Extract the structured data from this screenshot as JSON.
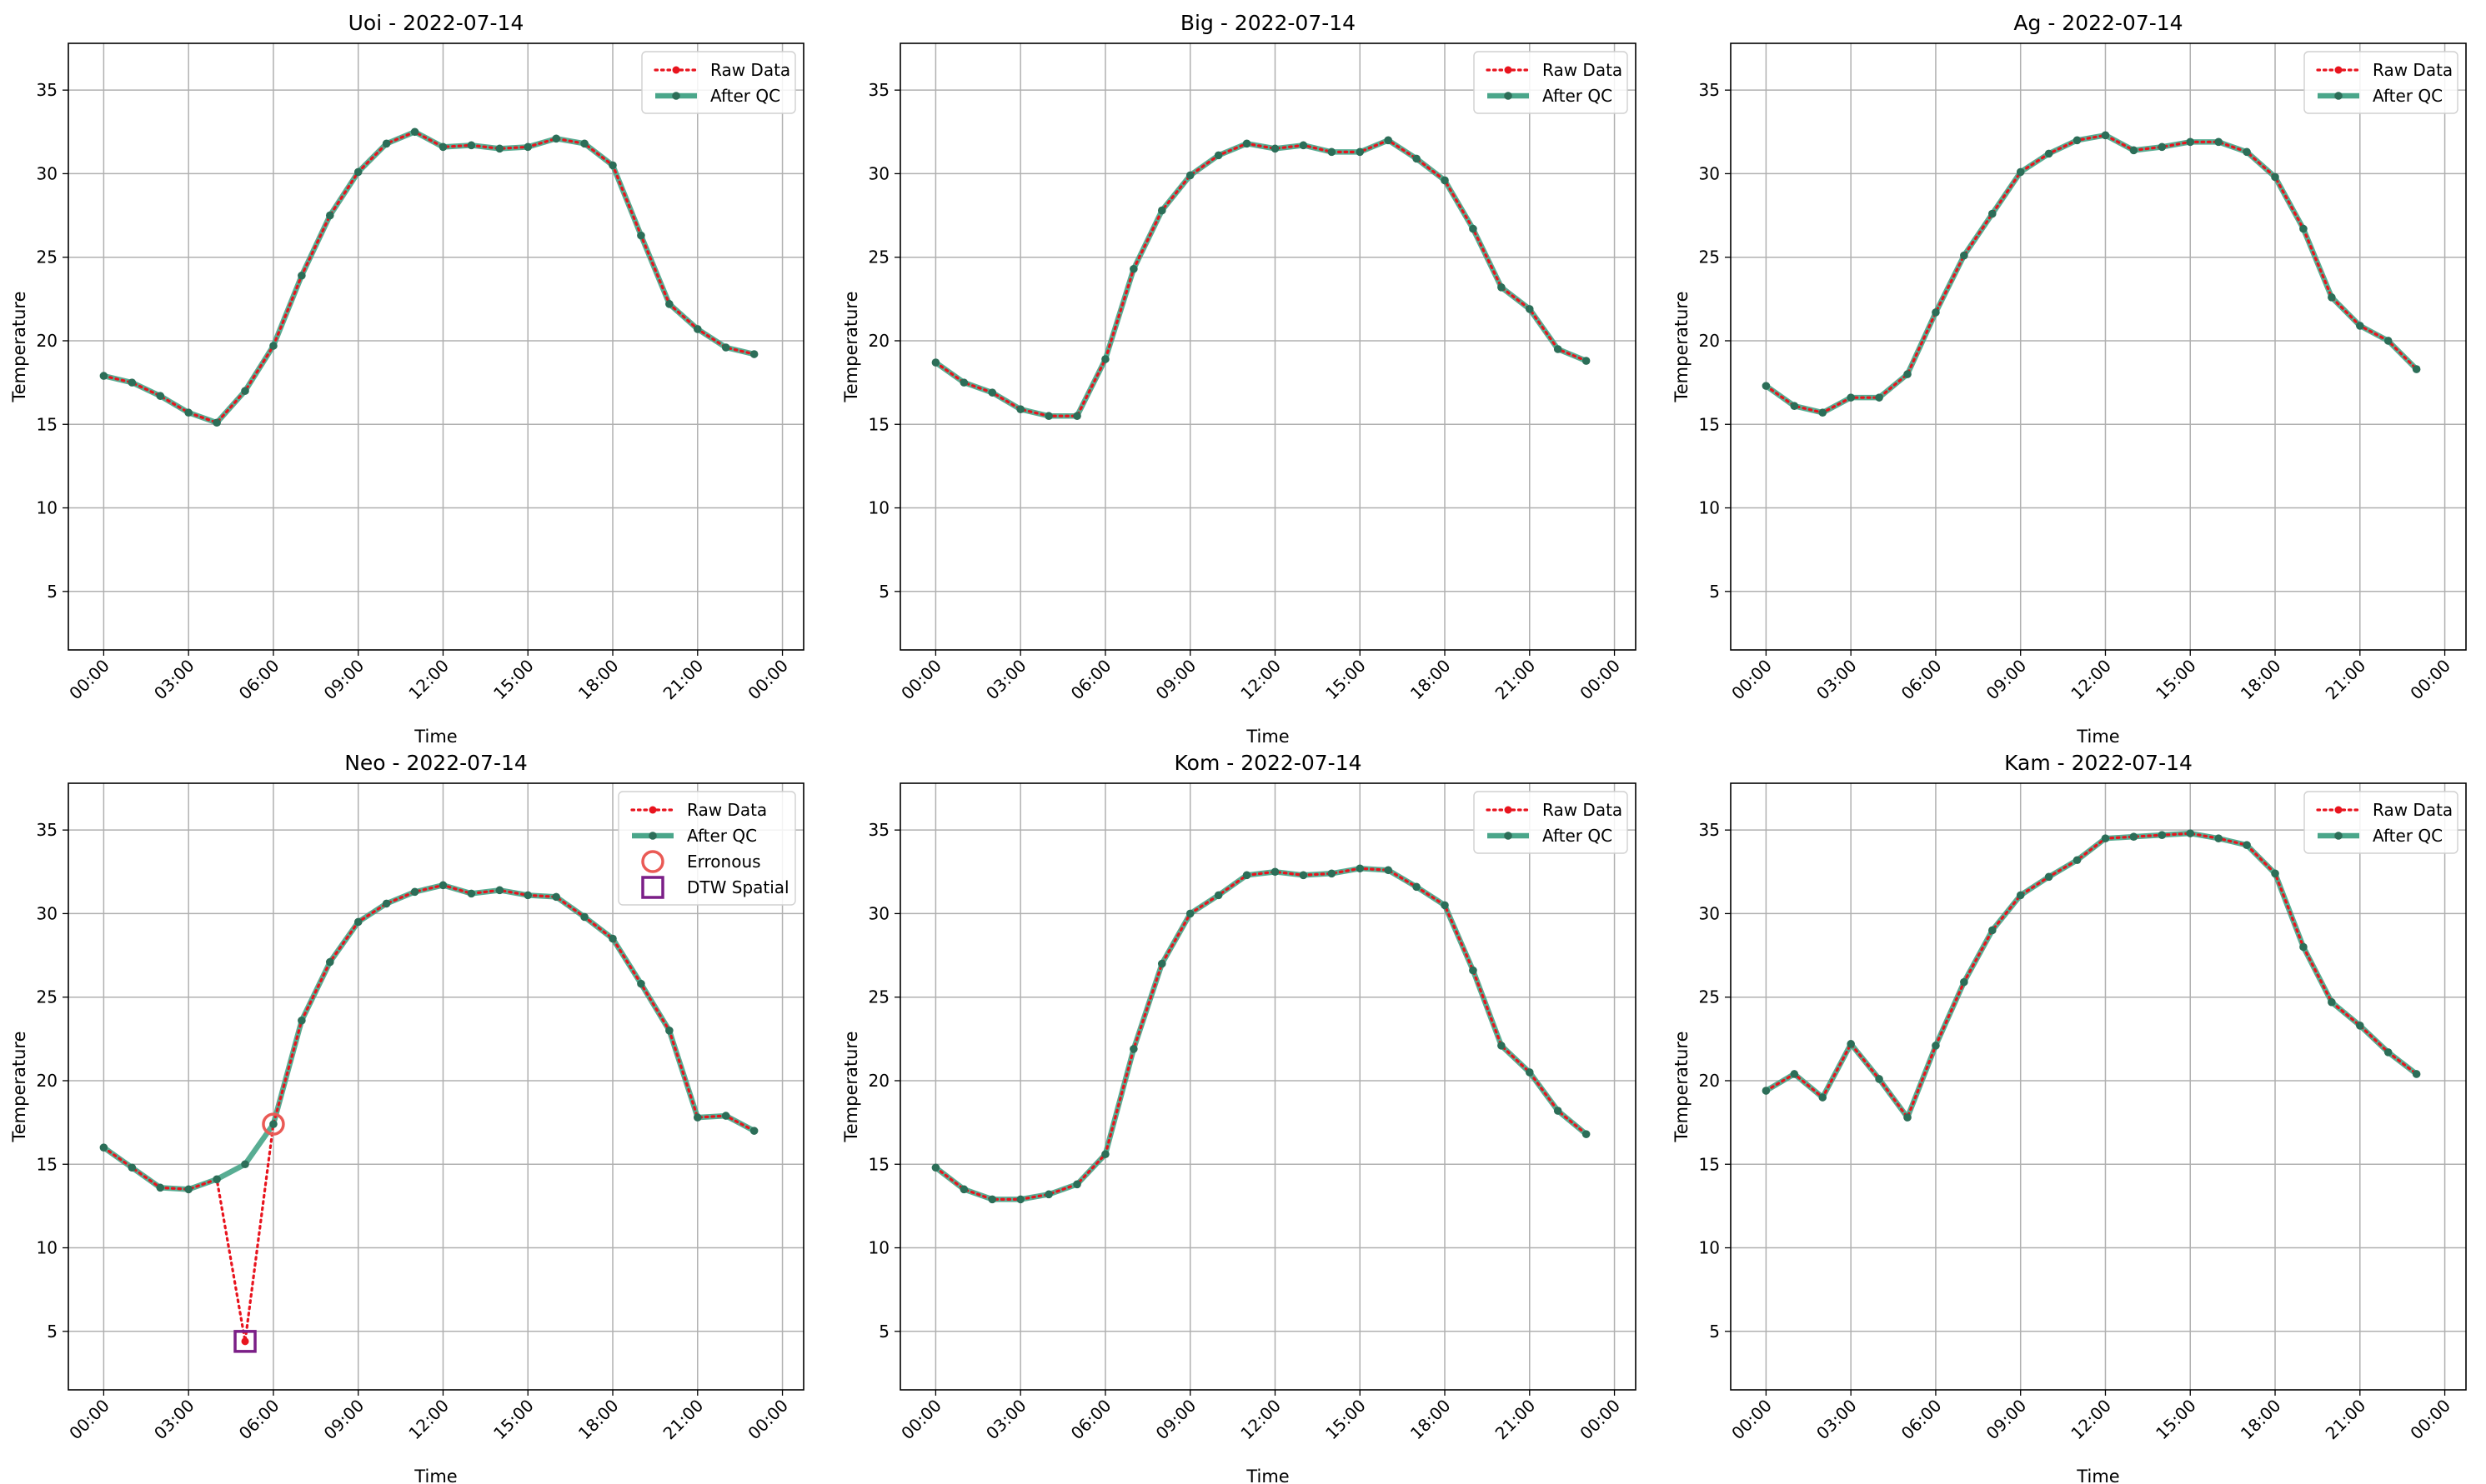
{
  "chart_data": [
    {
      "type": "line",
      "title": "Uoi - 2022-07-14",
      "xlabel": "Time",
      "ylabel": "Temperature",
      "x": [
        "00:00",
        "01:00",
        "02:00",
        "03:00",
        "04:00",
        "05:00",
        "06:00",
        "07:00",
        "08:00",
        "09:00",
        "10:00",
        "11:00",
        "12:00",
        "13:00",
        "14:00",
        "15:00",
        "16:00",
        "17:00",
        "18:00",
        "19:00",
        "20:00",
        "21:00",
        "22:00",
        "23:00"
      ],
      "xticks": [
        "00:00",
        "03:00",
        "06:00",
        "09:00",
        "12:00",
        "15:00",
        "18:00",
        "21:00",
        "00:00"
      ],
      "yticks": [
        5,
        10,
        15,
        20,
        25,
        30,
        35
      ],
      "xlim": [
        "2022-07-13 22:45",
        "2022-07-15 00:45"
      ],
      "ylim": [
        1.5,
        37.8
      ],
      "grid": true,
      "legend_position": "top-right",
      "series": [
        {
          "name": "Raw Data",
          "values": [
            17.9,
            17.5,
            16.7,
            15.7,
            15.1,
            17.0,
            19.7,
            23.9,
            27.5,
            30.1,
            31.8,
            32.5,
            31.6,
            31.7,
            31.5,
            31.6,
            32.1,
            31.8,
            30.5,
            26.3,
            22.2,
            20.7,
            19.6,
            19.2
          ]
        },
        {
          "name": "After QC",
          "values": [
            17.9,
            17.5,
            16.7,
            15.7,
            15.1,
            17.0,
            19.7,
            23.9,
            27.5,
            30.1,
            31.8,
            32.5,
            31.6,
            31.7,
            31.5,
            31.6,
            32.1,
            31.8,
            30.5,
            26.3,
            22.2,
            20.7,
            19.6,
            19.2
          ]
        }
      ],
      "markers": []
    },
    {
      "type": "line",
      "title": "Big - 2022-07-14",
      "xlabel": "Time",
      "ylabel": "Temperature",
      "x": [
        "00:00",
        "01:00",
        "02:00",
        "03:00",
        "04:00",
        "05:00",
        "06:00",
        "07:00",
        "08:00",
        "09:00",
        "10:00",
        "11:00",
        "12:00",
        "13:00",
        "14:00",
        "15:00",
        "16:00",
        "17:00",
        "18:00",
        "19:00",
        "20:00",
        "21:00",
        "22:00",
        "23:00"
      ],
      "xticks": [
        "00:00",
        "03:00",
        "06:00",
        "09:00",
        "12:00",
        "15:00",
        "18:00",
        "21:00",
        "00:00"
      ],
      "yticks": [
        5,
        10,
        15,
        20,
        25,
        30,
        35
      ],
      "xlim": [
        "2022-07-13 22:45",
        "2022-07-15 00:45"
      ],
      "ylim": [
        1.5,
        37.8
      ],
      "grid": true,
      "legend_position": "top-right",
      "series": [
        {
          "name": "Raw Data",
          "values": [
            18.7,
            17.5,
            16.9,
            15.9,
            15.5,
            15.5,
            18.9,
            24.3,
            27.8,
            29.9,
            31.1,
            31.8,
            31.5,
            31.7,
            31.3,
            31.3,
            32.0,
            30.9,
            29.6,
            26.7,
            23.2,
            21.9,
            19.5,
            18.8
          ]
        },
        {
          "name": "After QC",
          "values": [
            18.7,
            17.5,
            16.9,
            15.9,
            15.5,
            15.5,
            18.9,
            24.3,
            27.8,
            29.9,
            31.1,
            31.8,
            31.5,
            31.7,
            31.3,
            31.3,
            32.0,
            30.9,
            29.6,
            26.7,
            23.2,
            21.9,
            19.5,
            18.8
          ]
        }
      ],
      "markers": []
    },
    {
      "type": "line",
      "title": "Ag - 2022-07-14",
      "xlabel": "Time",
      "ylabel": "Temperature",
      "x": [
        "00:00",
        "01:00",
        "02:00",
        "03:00",
        "04:00",
        "05:00",
        "06:00",
        "07:00",
        "08:00",
        "09:00",
        "10:00",
        "11:00",
        "12:00",
        "13:00",
        "14:00",
        "15:00",
        "16:00",
        "17:00",
        "18:00",
        "19:00",
        "20:00",
        "21:00",
        "22:00",
        "23:00"
      ],
      "xticks": [
        "00:00",
        "03:00",
        "06:00",
        "09:00",
        "12:00",
        "15:00",
        "18:00",
        "21:00",
        "00:00"
      ],
      "yticks": [
        5,
        10,
        15,
        20,
        25,
        30,
        35
      ],
      "xlim": [
        "2022-07-13 22:45",
        "2022-07-15 00:45"
      ],
      "ylim": [
        1.5,
        37.8
      ],
      "grid": true,
      "legend_position": "top-right",
      "series": [
        {
          "name": "Raw Data",
          "values": [
            17.3,
            16.1,
            15.7,
            16.6,
            16.6,
            18.0,
            21.7,
            25.1,
            27.6,
            30.1,
            31.2,
            32.0,
            32.3,
            31.4,
            31.6,
            31.9,
            31.9,
            31.3,
            29.8,
            26.7,
            22.6,
            20.9,
            20.0,
            18.3
          ]
        },
        {
          "name": "After QC",
          "values": [
            17.3,
            16.1,
            15.7,
            16.6,
            16.6,
            18.0,
            21.7,
            25.1,
            27.6,
            30.1,
            31.2,
            32.0,
            32.3,
            31.4,
            31.6,
            31.9,
            31.9,
            31.3,
            29.8,
            26.7,
            22.6,
            20.9,
            20.0,
            18.3
          ]
        }
      ],
      "markers": []
    },
    {
      "type": "line",
      "title": "Neo - 2022-07-14",
      "xlabel": "Time",
      "ylabel": "Temperature",
      "x": [
        "00:00",
        "01:00",
        "02:00",
        "03:00",
        "04:00",
        "05:00",
        "06:00",
        "07:00",
        "08:00",
        "09:00",
        "10:00",
        "11:00",
        "12:00",
        "13:00",
        "14:00",
        "15:00",
        "16:00",
        "17:00",
        "18:00",
        "19:00",
        "20:00",
        "21:00",
        "22:00",
        "23:00"
      ],
      "xticks": [
        "00:00",
        "03:00",
        "06:00",
        "09:00",
        "12:00",
        "15:00",
        "18:00",
        "21:00",
        "00:00"
      ],
      "yticks": [
        5,
        10,
        15,
        20,
        25,
        30,
        35
      ],
      "xlim": [
        "2022-07-13 22:45",
        "2022-07-15 00:45"
      ],
      "ylim": [
        1.5,
        37.8
      ],
      "grid": true,
      "legend_position": "top-right",
      "series": [
        {
          "name": "Raw Data",
          "values": [
            16.0,
            14.8,
            13.6,
            13.5,
            14.1,
            4.4,
            17.4,
            23.6,
            27.1,
            29.5,
            30.6,
            31.3,
            31.7,
            31.2,
            31.4,
            31.1,
            31.0,
            29.8,
            28.5,
            25.8,
            23.0,
            17.8,
            17.9,
            17.0
          ]
        },
        {
          "name": "After QC",
          "values": [
            16.0,
            14.8,
            13.6,
            13.5,
            14.1,
            15.0,
            17.4,
            23.6,
            27.1,
            29.5,
            30.6,
            31.3,
            31.7,
            31.2,
            31.4,
            31.1,
            31.0,
            29.8,
            28.5,
            25.8,
            23.0,
            17.8,
            17.9,
            17.0
          ]
        }
      ],
      "markers": [
        {
          "name": "Erronous",
          "shape": "circle",
          "x": "06:00",
          "y": 17.4
        },
        {
          "name": "DTW Spatial",
          "shape": "square",
          "x": "05:00",
          "y": 4.4
        }
      ]
    },
    {
      "type": "line",
      "title": "Kom - 2022-07-14",
      "xlabel": "Time",
      "ylabel": "Temperature",
      "x": [
        "00:00",
        "01:00",
        "02:00",
        "03:00",
        "04:00",
        "05:00",
        "06:00",
        "07:00",
        "08:00",
        "09:00",
        "10:00",
        "11:00",
        "12:00",
        "13:00",
        "14:00",
        "15:00",
        "16:00",
        "17:00",
        "18:00",
        "19:00",
        "20:00",
        "21:00",
        "22:00",
        "23:00"
      ],
      "xticks": [
        "00:00",
        "03:00",
        "06:00",
        "09:00",
        "12:00",
        "15:00",
        "18:00",
        "21:00",
        "00:00"
      ],
      "yticks": [
        5,
        10,
        15,
        20,
        25,
        30,
        35
      ],
      "xlim": [
        "2022-07-13 22:45",
        "2022-07-15 00:45"
      ],
      "ylim": [
        1.5,
        37.8
      ],
      "grid": true,
      "legend_position": "top-right",
      "series": [
        {
          "name": "Raw Data",
          "values": [
            14.8,
            13.5,
            12.9,
            12.9,
            13.2,
            13.8,
            15.6,
            21.9,
            27.0,
            30.0,
            31.1,
            32.3,
            32.5,
            32.3,
            32.4,
            32.7,
            32.6,
            31.6,
            30.5,
            26.6,
            22.1,
            20.5,
            18.2,
            16.8
          ]
        },
        {
          "name": "After QC",
          "values": [
            14.8,
            13.5,
            12.9,
            12.9,
            13.2,
            13.8,
            15.6,
            21.9,
            27.0,
            30.0,
            31.1,
            32.3,
            32.5,
            32.3,
            32.4,
            32.7,
            32.6,
            31.6,
            30.5,
            26.6,
            22.1,
            20.5,
            18.2,
            16.8
          ]
        }
      ],
      "markers": []
    },
    {
      "type": "line",
      "title": "Kam - 2022-07-14",
      "xlabel": "Time",
      "ylabel": "Temperature",
      "x": [
        "00:00",
        "01:00",
        "02:00",
        "03:00",
        "04:00",
        "05:00",
        "06:00",
        "07:00",
        "08:00",
        "09:00",
        "10:00",
        "11:00",
        "12:00",
        "13:00",
        "14:00",
        "15:00",
        "16:00",
        "17:00",
        "18:00",
        "19:00",
        "20:00",
        "21:00",
        "22:00",
        "23:00"
      ],
      "xticks": [
        "00:00",
        "03:00",
        "06:00",
        "09:00",
        "12:00",
        "15:00",
        "18:00",
        "21:00",
        "00:00"
      ],
      "yticks": [
        5,
        10,
        15,
        20,
        25,
        30,
        35
      ],
      "xlim": [
        "2022-07-13 22:45",
        "2022-07-15 00:45"
      ],
      "ylim": [
        1.5,
        37.8
      ],
      "grid": true,
      "legend_position": "top-right",
      "series": [
        {
          "name": "Raw Data",
          "values": [
            19.4,
            20.4,
            19.0,
            22.2,
            20.1,
            17.8,
            22.1,
            25.9,
            29.0,
            31.1,
            32.2,
            33.2,
            34.5,
            34.6,
            34.7,
            34.8,
            34.5,
            34.1,
            32.4,
            28.0,
            24.7,
            23.3,
            21.7,
            20.4
          ]
        },
        {
          "name": "After QC",
          "values": [
            19.4,
            20.4,
            19.0,
            22.2,
            20.1,
            17.8,
            22.1,
            25.9,
            29.0,
            31.1,
            32.2,
            33.2,
            34.5,
            34.6,
            34.7,
            34.8,
            34.5,
            34.1,
            32.4,
            28.0,
            24.7,
            23.3,
            21.7,
            20.4
          ]
        }
      ],
      "markers": []
    }
  ],
  "colors": {
    "raw": "#e8141e",
    "qc_line": "#4aa68a",
    "qc_marker": "#2c6e58",
    "erronous": "#ea5a55",
    "dtw": "#7b1f87",
    "grid": "#b0b0b0"
  }
}
